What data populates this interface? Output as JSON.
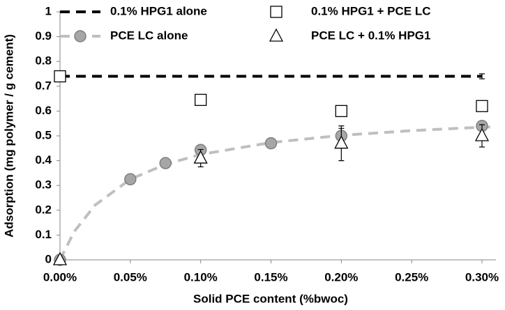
{
  "chart_data": {
    "type": "scatter",
    "x_label": "Solid PCE content (%bwoc)",
    "y_label": "Adsorption (mg polymer / g cement)",
    "xlim": [
      0,
      0.3
    ],
    "ylim": [
      0,
      1
    ],
    "xticks": [
      {
        "value": 0,
        "label": "0.00%"
      },
      {
        "value": 0.05,
        "label": "0.05%"
      },
      {
        "value": 0.1,
        "label": "0.10%"
      },
      {
        "value": 0.15,
        "label": "0.15%"
      },
      {
        "value": 0.2,
        "label": "0.20%"
      },
      {
        "value": 0.25,
        "label": "0.25%"
      },
      {
        "value": 0.3,
        "label": "0.30%"
      }
    ],
    "yticks": [
      0,
      0.1,
      0.2,
      0.3,
      0.4,
      0.5,
      0.6,
      0.7,
      0.8,
      0.9,
      1
    ],
    "series": [
      {
        "name": "0.1% HPG1 alone",
        "color": "#000000",
        "line": "dashed",
        "marker": null,
        "x": [
          0,
          0.3
        ],
        "values": [
          0.74,
          0.74
        ],
        "errors": [
          null,
          0.01
        ]
      },
      {
        "name": "PCE LC alone",
        "color": "#a6a6a6",
        "line": null,
        "marker": "circle",
        "x": [
          0,
          0.05,
          0.075,
          0.1,
          0.15,
          0.2,
          0.3
        ],
        "values": [
          0,
          0.325,
          0.39,
          0.443,
          0.47,
          0.5,
          0.54
        ],
        "errors": [
          null,
          null,
          null,
          null,
          null,
          0.03,
          0.015
        ],
        "fit_color": "#bfbfbf",
        "fit_x": [
          0,
          0.01,
          0.025,
          0.05,
          0.075,
          0.1,
          0.15,
          0.2,
          0.25,
          0.3,
          0.31
        ],
        "fit_values": [
          0,
          0.113,
          0.221,
          0.325,
          0.385,
          0.425,
          0.473,
          0.502,
          0.521,
          0.535,
          0.536
        ]
      },
      {
        "name": "0.1% HPG1 + PCE LC",
        "color": "#000000",
        "line": null,
        "marker": "square",
        "x": [
          0,
          0.1,
          0.2,
          0.3
        ],
        "values": [
          0.74,
          0.645,
          0.6,
          0.62
        ],
        "errors": [
          null,
          null,
          null,
          null
        ]
      },
      {
        "name": "PCE LC + 0.1% HPG1",
        "color": "#000000",
        "line": null,
        "marker": "triangle",
        "x": [
          0,
          0.1,
          0.2,
          0.3
        ],
        "values": [
          0,
          0.41,
          0.47,
          0.5
        ],
        "errors": [
          null,
          0.035,
          0.07,
          0.045
        ]
      }
    ]
  }
}
